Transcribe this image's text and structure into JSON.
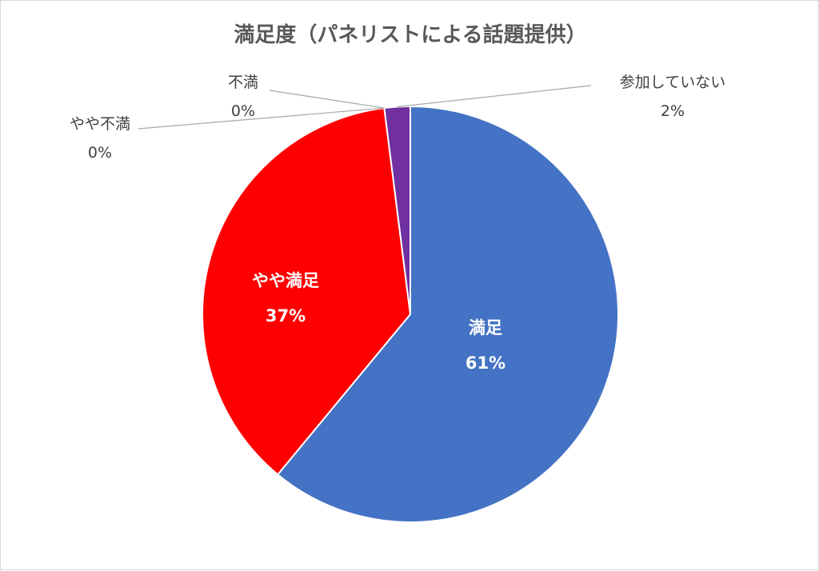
{
  "chart_data": {
    "type": "pie",
    "title": "満足度（パネリストによる話題提供）",
    "slices": [
      {
        "label": "満足",
        "percent_label": "61%",
        "value": 61,
        "color": "#4472C4"
      },
      {
        "label": "やや満足",
        "percent_label": "37%",
        "value": 37,
        "color": "#FF0000"
      },
      {
        "label": "やや不満",
        "percent_label": "0%",
        "value": 0,
        "color": "#A5A5A5"
      },
      {
        "label": "不満",
        "percent_label": "0%",
        "value": 0,
        "color": "#FFC000"
      },
      {
        "label": "参加していない",
        "percent_label": "2%",
        "value": 2,
        "color": "#7030A0"
      }
    ],
    "start_angle_deg": 0,
    "direction": "clockwise",
    "legend": "none"
  }
}
